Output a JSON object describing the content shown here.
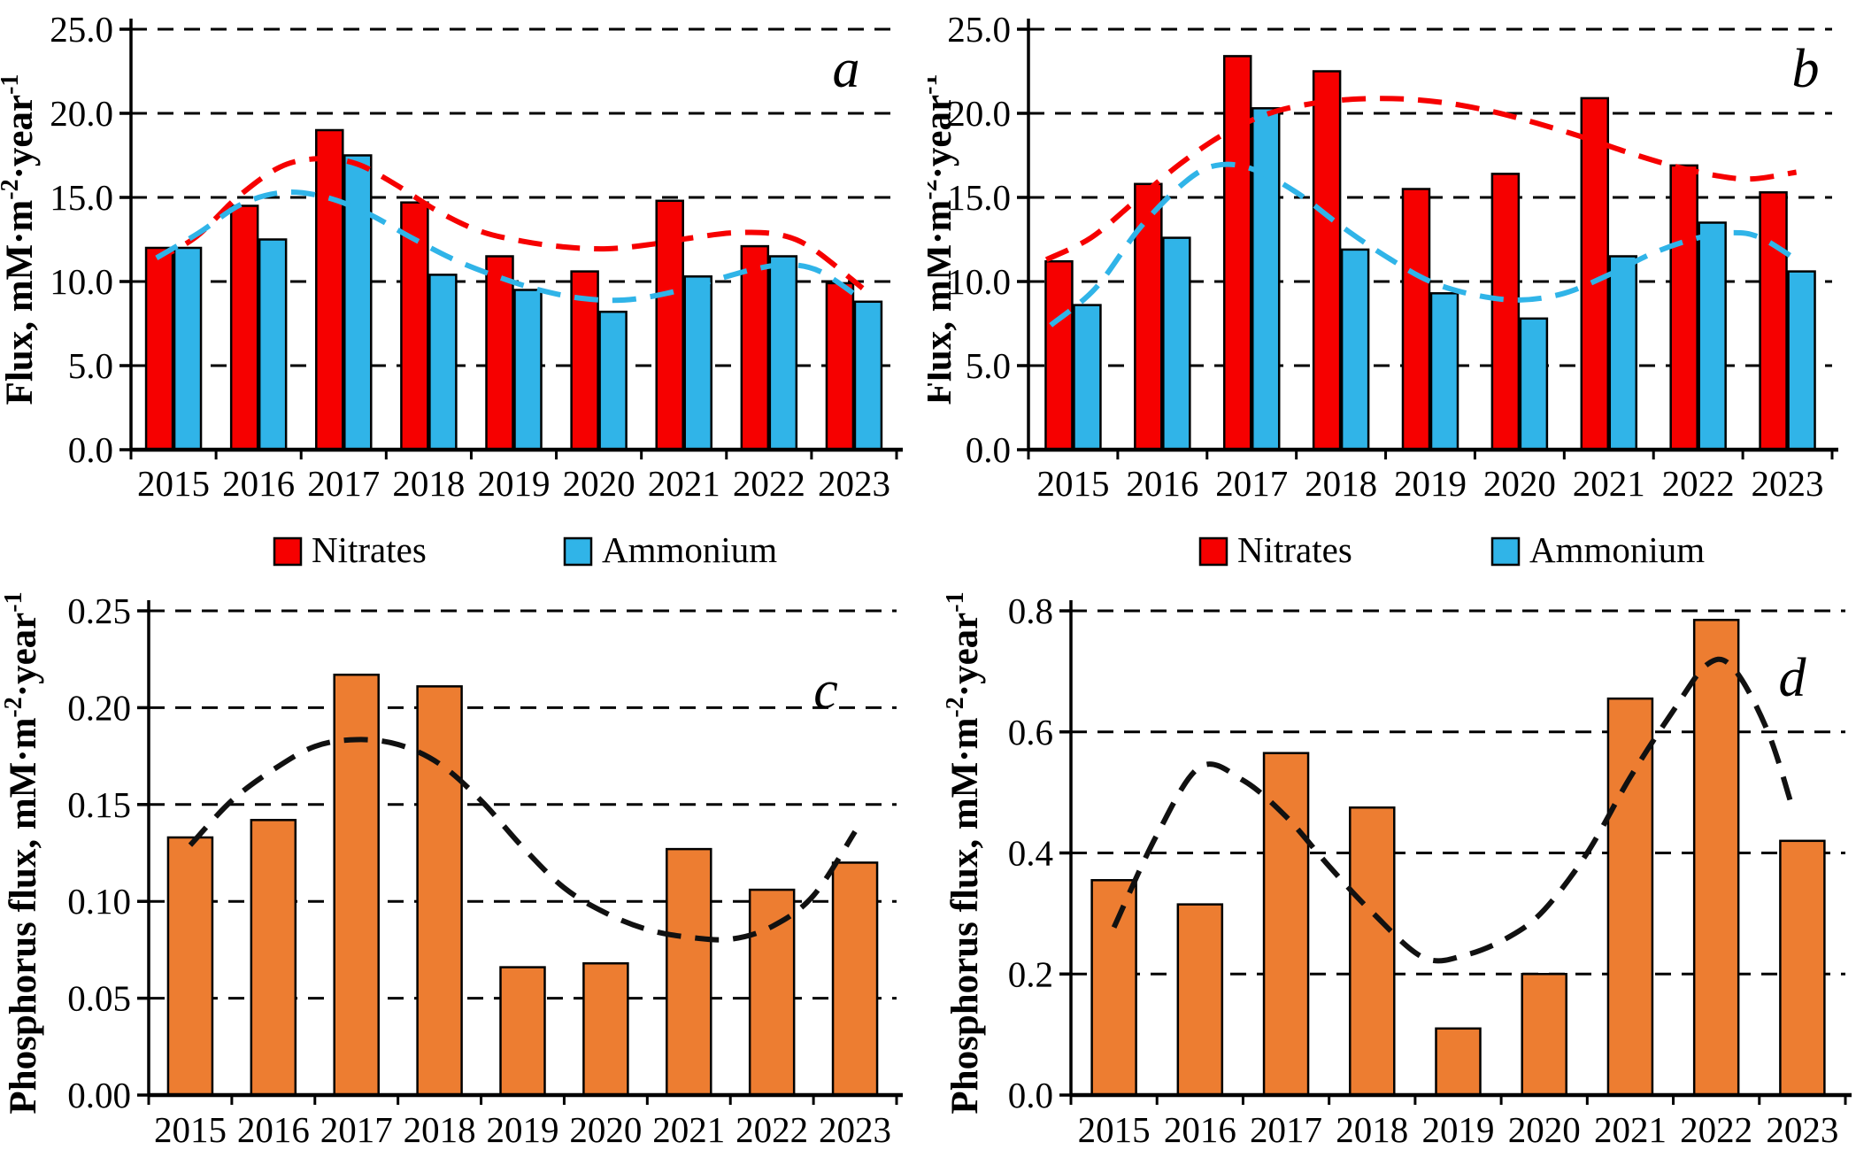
{
  "figure": {
    "background": "#ffffff"
  },
  "chart_data": [
    {
      "panel": "a",
      "type": "bar",
      "categories": [
        "2015",
        "2016",
        "2017",
        "2018",
        "2019",
        "2020",
        "2021",
        "2022",
        "2023"
      ],
      "ylabel": "Flux, mM·m⁻²·year⁻¹",
      "ylabel_parts": [
        {
          "t": "Flux, mM·m"
        },
        {
          "t": "-2",
          "sup": true
        },
        {
          "t": "·year"
        },
        {
          "t": "-1",
          "sup": true
        }
      ],
      "ylim": [
        0,
        25
      ],
      "yticks": [
        {
          "v": 0,
          "label": "0.0"
        },
        {
          "v": 5,
          "label": "5.0"
        },
        {
          "v": 10,
          "label": "10.0"
        },
        {
          "v": 15,
          "label": "15.0"
        },
        {
          "v": 20,
          "label": "20.0"
        },
        {
          "v": 25,
          "label": "25.0"
        }
      ],
      "grid": true,
      "legend_position": "bottom",
      "series": [
        {
          "name": "Nitrates",
          "color": "#f60000",
          "values": [
            12.0,
            14.5,
            19.0,
            14.7,
            11.5,
            10.6,
            14.8,
            12.1,
            9.9
          ]
        },
        {
          "name": "Ammonium",
          "color": "#30b4e8",
          "values": [
            12.0,
            12.5,
            17.5,
            10.4,
            9.5,
            8.2,
            10.3,
            11.5,
            8.8
          ]
        }
      ],
      "trends": [
        {
          "name": "nitrates-trend",
          "color": "#f60000",
          "points": [
            [
              -0.25,
              11.2
            ],
            [
              0.25,
              12.6
            ],
            [
              0.75,
              15.0
            ],
            [
              1.25,
              16.8
            ],
            [
              1.7,
              17.3
            ],
            [
              2.15,
              17.0
            ],
            [
              2.6,
              15.8
            ],
            [
              3.1,
              14.2
            ],
            [
              3.6,
              13.0
            ],
            [
              4.1,
              12.4
            ],
            [
              4.6,
              12.05
            ],
            [
              5.1,
              11.95
            ],
            [
              5.6,
              12.2
            ],
            [
              6.1,
              12.6
            ],
            [
              6.6,
              12.9
            ],
            [
              7.1,
              12.8
            ],
            [
              7.5,
              12.0
            ],
            [
              8.1,
              9.6
            ]
          ]
        },
        {
          "name": "ammonium-trend",
          "color": "#30b4e8",
          "points": [
            [
              -0.2,
              11.4
            ],
            [
              0.3,
              12.9
            ],
            [
              0.8,
              14.6
            ],
            [
              1.3,
              15.3
            ],
            [
              1.8,
              15.0
            ],
            [
              2.3,
              14.0
            ],
            [
              2.8,
              12.6
            ],
            [
              3.3,
              11.3
            ],
            [
              3.8,
              10.3
            ],
            [
              4.3,
              9.5
            ],
            [
              4.8,
              9.0
            ],
            [
              5.3,
              8.9
            ],
            [
              5.8,
              9.3
            ],
            [
              6.3,
              10.0
            ],
            [
              6.8,
              10.7
            ],
            [
              7.2,
              11.0
            ],
            [
              7.6,
              10.6
            ],
            [
              8.1,
              8.9
            ]
          ]
        }
      ],
      "legend": [
        {
          "label": "Nitrates",
          "color": "#f60000"
        },
        {
          "label": "Ammonium",
          "color": "#30b4e8"
        }
      ]
    },
    {
      "panel": "b",
      "type": "bar",
      "categories": [
        "2015",
        "2016",
        "2017",
        "2018",
        "2019",
        "2020",
        "2021",
        "2022",
        "2023"
      ],
      "ylabel": "Flux, mM·m⁻²·year⁻¹",
      "ylabel_parts": [
        {
          "t": "Flux, mM·m"
        },
        {
          "t": "-2",
          "sup": true
        },
        {
          "t": "·year"
        },
        {
          "t": "-1",
          "sup": true
        }
      ],
      "ylim": [
        0,
        25
      ],
      "yticks": [
        {
          "v": 0,
          "label": "0.0"
        },
        {
          "v": 5,
          "label": "5.0"
        },
        {
          "v": 10,
          "label": "10.0"
        },
        {
          "v": 15,
          "label": "15.0"
        },
        {
          "v": 20,
          "label": "20.0"
        },
        {
          "v": 25,
          "label": "25.0"
        }
      ],
      "grid": true,
      "legend_position": "bottom",
      "series": [
        {
          "name": "Nitrates",
          "color": "#f60000",
          "values": [
            11.2,
            15.8,
            23.4,
            22.5,
            15.5,
            16.4,
            20.9,
            16.9,
            15.3
          ]
        },
        {
          "name": "Ammonium",
          "color": "#30b4e8",
          "values": [
            8.6,
            12.6,
            20.3,
            11.9,
            9.3,
            7.8,
            11.5,
            13.5,
            10.6
          ]
        }
      ],
      "trends": [
        {
          "name": "nitrates-trend",
          "color": "#f60000",
          "points": [
            [
              -0.3,
              11.3
            ],
            [
              0.2,
              12.6
            ],
            [
              0.7,
              14.8
            ],
            [
              1.2,
              17.0
            ],
            [
              1.7,
              18.8
            ],
            [
              2.2,
              20.0
            ],
            [
              2.7,
              20.6
            ],
            [
              3.2,
              20.85
            ],
            [
              3.7,
              20.85
            ],
            [
              4.2,
              20.6
            ],
            [
              4.7,
              20.1
            ],
            [
              5.2,
              19.4
            ],
            [
              5.7,
              18.6
            ],
            [
              6.2,
              17.7
            ],
            [
              6.7,
              16.9
            ],
            [
              7.2,
              16.3
            ],
            [
              7.6,
              16.1
            ],
            [
              8.1,
              16.5
            ]
          ]
        },
        {
          "name": "ammonium-trend",
          "color": "#30b4e8",
          "points": [
            [
              -0.25,
              7.4
            ],
            [
              0.25,
              9.6
            ],
            [
              0.75,
              13.2
            ],
            [
              1.25,
              15.9
            ],
            [
              1.6,
              16.9
            ],
            [
              2.0,
              16.7
            ],
            [
              2.5,
              15.3
            ],
            [
              3.0,
              13.3
            ],
            [
              3.5,
              11.5
            ],
            [
              4.0,
              10.0
            ],
            [
              4.5,
              9.2
            ],
            [
              5.0,
              8.9
            ],
            [
              5.5,
              9.3
            ],
            [
              6.0,
              10.4
            ],
            [
              6.5,
              11.7
            ],
            [
              7.0,
              12.6
            ],
            [
              7.4,
              12.9
            ],
            [
              7.7,
              12.6
            ],
            [
              8.1,
              11.3
            ]
          ]
        }
      ],
      "legend": [
        {
          "label": "Nitrates",
          "color": "#f60000"
        },
        {
          "label": "Ammonium",
          "color": "#30b4e8"
        }
      ]
    },
    {
      "panel": "c",
      "type": "bar",
      "categories": [
        "2015",
        "2016",
        "2017",
        "2018",
        "2019",
        "2020",
        "2021",
        "2022",
        "2023"
      ],
      "ylabel": "Phosphorus flux, mM·m⁻²·year⁻¹",
      "ylabel_parts": [
        {
          "t": "Phosphorus flux, mM·m"
        },
        {
          "t": "-2",
          "sup": true
        },
        {
          "t": "·year"
        },
        {
          "t": "-1",
          "sup": true
        }
      ],
      "ylim": [
        0,
        0.25
      ],
      "yticks": [
        {
          "v": 0,
          "label": "0.00"
        },
        {
          "v": 0.05,
          "label": "0.05"
        },
        {
          "v": 0.1,
          "label": "0.10"
        },
        {
          "v": 0.15,
          "label": "0.15"
        },
        {
          "v": 0.2,
          "label": "0.20"
        },
        {
          "v": 0.25,
          "label": "0.25"
        }
      ],
      "grid": true,
      "series": [
        {
          "name": "Phosphorus",
          "color": "#ed7d31",
          "values": [
            0.133,
            0.142,
            0.217,
            0.211,
            0.066,
            0.068,
            0.127,
            0.106,
            0.12
          ]
        }
      ],
      "trends": [
        {
          "name": "phosphorus-trend",
          "color": "#111111",
          "points": [
            [
              0,
              0.129
            ],
            [
              0.5,
              0.152
            ],
            [
              1,
              0.168
            ],
            [
              1.5,
              0.18
            ],
            [
              2,
              0.1835
            ],
            [
              2.5,
              0.181
            ],
            [
              3,
              0.171
            ],
            [
              3.5,
              0.152
            ],
            [
              4,
              0.128
            ],
            [
              4.5,
              0.107
            ],
            [
              5,
              0.094
            ],
            [
              5.5,
              0.0855
            ],
            [
              6,
              0.0815
            ],
            [
              6.5,
              0.0805
            ],
            [
              7,
              0.087
            ],
            [
              7.5,
              0.103
            ],
            [
              8,
              0.136
            ]
          ]
        }
      ],
      "legend": []
    },
    {
      "panel": "d",
      "type": "bar",
      "categories": [
        "2015",
        "2016",
        "2017",
        "2018",
        "2019",
        "2020",
        "2021",
        "2022",
        "2023"
      ],
      "ylabel": "Phosphorus flux, mM·m⁻²·year⁻¹",
      "ylabel_parts": [
        {
          "t": "Phosphorus flux, mM·m"
        },
        {
          "t": "-2",
          "sup": true
        },
        {
          "t": "·year"
        },
        {
          "t": "-1",
          "sup": true
        }
      ],
      "ylim": [
        0,
        0.8
      ],
      "yticks": [
        {
          "v": 0,
          "label": "0.0"
        },
        {
          "v": 0.2,
          "label": "0.2"
        },
        {
          "v": 0.4,
          "label": "0.4"
        },
        {
          "v": 0.6,
          "label": "0.6"
        },
        {
          "v": 0.8,
          "label": "0.8"
        }
      ],
      "grid": true,
      "series": [
        {
          "name": "Phosphorus",
          "color": "#ed7d31",
          "values": [
            0.355,
            0.315,
            0.565,
            0.475,
            0.11,
            0.2,
            0.655,
            0.785,
            0.42
          ]
        }
      ],
      "trends": [
        {
          "name": "phosphorus-trend",
          "color": "#111111",
          "points": [
            [
              0,
              0.277
            ],
            [
              0.5,
              0.43
            ],
            [
              1,
              0.542
            ],
            [
              1.5,
              0.52
            ],
            [
              2,
              0.46
            ],
            [
              2.5,
              0.378
            ],
            [
              3,
              0.302
            ],
            [
              3.6,
              0.227
            ],
            [
              4.1,
              0.232
            ],
            [
              4.6,
              0.262
            ],
            [
              5,
              0.306
            ],
            [
              5.5,
              0.4
            ],
            [
              6,
              0.525
            ],
            [
              6.5,
              0.635
            ],
            [
              6.9,
              0.712
            ],
            [
              7.2,
              0.705
            ],
            [
              7.6,
              0.6
            ],
            [
              7.9,
              0.467
            ]
          ]
        }
      ],
      "legend": []
    }
  ]
}
